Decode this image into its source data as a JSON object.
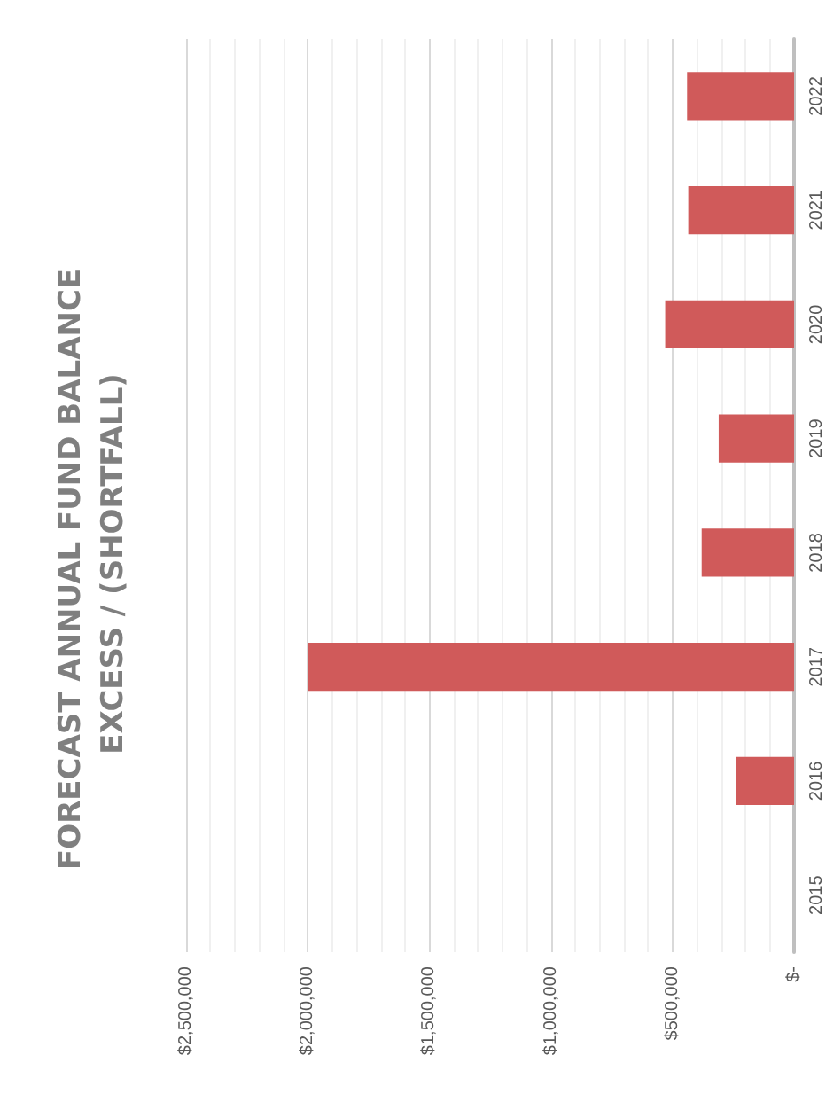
{
  "chart_data": {
    "type": "bar",
    "orientation": "horizontal",
    "title": "FORECAST ANNUAL FUND BALANCE EXCESS / (SHORTFALL)",
    "categories": [
      "2022",
      "2021",
      "2020",
      "2019",
      "2018",
      "2017",
      "2016",
      "2015"
    ],
    "values": [
      440000,
      435000,
      530000,
      310000,
      380000,
      2000000,
      240000,
      null
    ],
    "color": "#d05a5a",
    "xlim": [
      2500000,
      0
    ],
    "xticks": [
      {
        "value": 2500000,
        "label": "$2,500,000"
      },
      {
        "value": 2000000,
        "label": "$2,000,000"
      },
      {
        "value": 1500000,
        "label": "$1,500,000"
      },
      {
        "value": 1000000,
        "label": "$1,000,000"
      },
      {
        "value": 500000,
        "label": "$500,000"
      },
      {
        "value": 0,
        "label": "$-"
      }
    ],
    "grid": "x"
  }
}
